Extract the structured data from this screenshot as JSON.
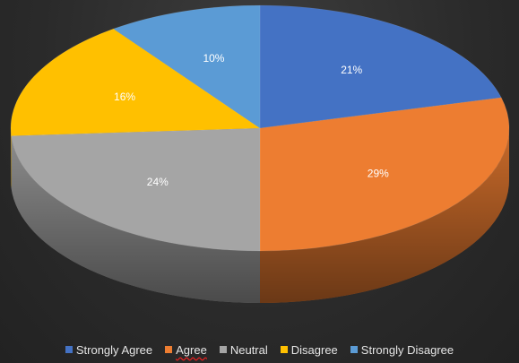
{
  "chart_data": {
    "type": "pie",
    "style": "3d",
    "categories": [
      "Strongly Agree",
      "Agree",
      "Neutral",
      "Disagree",
      "Strongly Disagree"
    ],
    "values": [
      21,
      29,
      24,
      16,
      10
    ],
    "labels": [
      "21%",
      "29%",
      "24%",
      "16%",
      "10%"
    ],
    "colors": [
      "#4472C4",
      "#ED7D31",
      "#A5A5A5",
      "#FFC000",
      "#5B9BD5"
    ],
    "legend_position": "bottom",
    "title": ""
  }
}
